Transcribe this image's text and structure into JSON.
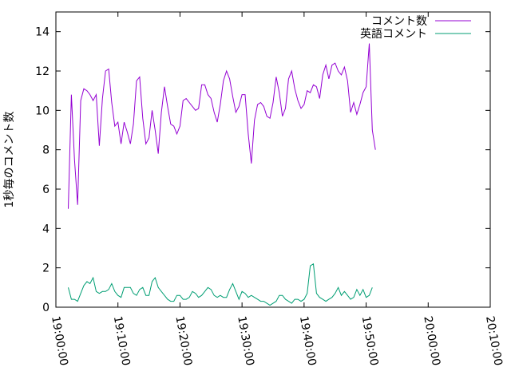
{
  "chart_data": {
    "type": "line",
    "title": "",
    "xlabel": "",
    "ylabel": "1秒毎のコメント数",
    "ylim": [
      0,
      15
    ],
    "yticks": [
      0,
      2,
      4,
      6,
      8,
      10,
      12,
      14
    ],
    "xlim": [
      "19:00:00",
      "20:10:00"
    ],
    "xticks": [
      "19:00:00",
      "19:10:00",
      "19:20:00",
      "19:30:00",
      "19:40:00",
      "19:50:00",
      "20:00:00",
      "20:10:00"
    ],
    "x_start": "19:02:00",
    "x_step_seconds": 30,
    "legend_position": "top-right",
    "grid": false,
    "series": [
      {
        "name": "コメント数",
        "color": "#9400d3",
        "values": [
          5.0,
          10.8,
          7.5,
          5.2,
          10.5,
          11.1,
          11.0,
          10.8,
          10.5,
          10.8,
          8.2,
          10.6,
          12.0,
          12.1,
          10.4,
          9.2,
          9.4,
          8.3,
          9.4,
          8.9,
          8.3,
          9.3,
          11.5,
          11.7,
          9.6,
          8.3,
          8.6,
          10.0,
          9.0,
          7.8,
          9.9,
          11.2,
          10.2,
          9.3,
          9.2,
          8.8,
          9.2,
          10.5,
          10.6,
          10.4,
          10.2,
          10.0,
          10.1,
          11.3,
          11.3,
          10.8,
          10.6,
          9.9,
          9.4,
          10.3,
          11.5,
          12.0,
          11.6,
          10.7,
          9.9,
          10.2,
          10.8,
          10.8,
          8.8,
          7.3,
          9.5,
          10.3,
          10.4,
          10.2,
          9.7,
          9.6,
          10.4,
          11.7,
          10.9,
          9.7,
          10.1,
          11.6,
          12.0,
          11.1,
          10.5,
          10.1,
          10.3,
          11.0,
          10.9,
          11.3,
          11.2,
          10.6,
          11.8,
          12.3,
          11.6,
          12.3,
          12.4,
          12.0,
          11.8,
          12.2,
          11.5,
          9.9,
          10.4,
          9.8,
          10.3,
          10.9,
          11.2,
          13.4,
          9.0,
          8.0
        ]
      },
      {
        "name": "英語コメント",
        "color": "#009e73",
        "values": [
          1.0,
          0.4,
          0.4,
          0.3,
          0.7,
          1.1,
          1.3,
          1.2,
          1.5,
          0.8,
          0.7,
          0.8,
          0.8,
          0.9,
          1.2,
          0.8,
          0.6,
          0.5,
          1.0,
          1.0,
          1.0,
          0.7,
          0.6,
          0.9,
          1.0,
          0.6,
          0.6,
          1.3,
          1.5,
          1.0,
          0.8,
          0.6,
          0.4,
          0.3,
          0.3,
          0.6,
          0.6,
          0.4,
          0.4,
          0.5,
          0.8,
          0.7,
          0.5,
          0.6,
          0.8,
          1.0,
          0.9,
          0.6,
          0.5,
          0.6,
          0.5,
          0.5,
          0.9,
          1.2,
          0.8,
          0.4,
          0.8,
          0.7,
          0.5,
          0.6,
          0.5,
          0.4,
          0.3,
          0.3,
          0.2,
          0.1,
          0.2,
          0.3,
          0.6,
          0.6,
          0.4,
          0.3,
          0.2,
          0.4,
          0.4,
          0.3,
          0.4,
          0.7,
          2.1,
          2.2,
          0.7,
          0.5,
          0.4,
          0.3,
          0.4,
          0.5,
          0.7,
          1.0,
          0.6,
          0.8,
          0.6,
          0.4,
          0.5,
          0.9,
          0.6,
          0.9,
          0.5,
          0.6,
          1.0
        ]
      }
    ]
  }
}
